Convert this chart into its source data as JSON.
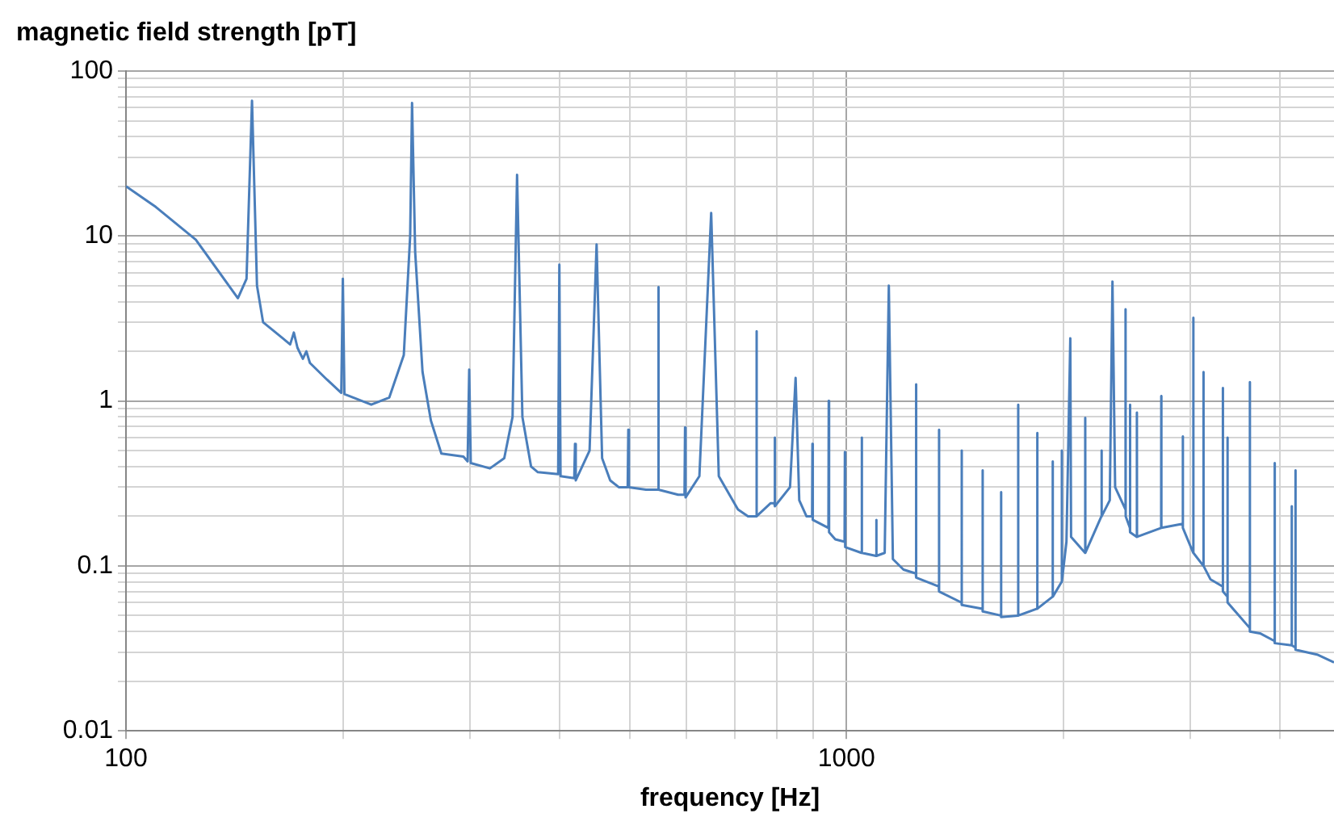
{
  "chart_data": {
    "type": "line",
    "ylabel": "magnetic field strength [pT]",
    "xlabel": "frequency [Hz]",
    "log": "xy",
    "grid": true,
    "marker": "none",
    "line_style": "solid",
    "xlim": [
      100,
      4750
    ],
    "xticks": [
      100,
      {
        "value": 200,
        "label": null
      },
      {
        "value": 300,
        "label": null
      },
      {
        "value": 400,
        "label": null
      },
      {
        "value": 500,
        "label": null
      },
      {
        "value": 600,
        "label": null
      },
      {
        "value": 700,
        "label": null
      },
      {
        "value": 800,
        "label": null
      },
      {
        "value": 900,
        "label": null
      },
      1000,
      {
        "value": 2000,
        "label": null
      },
      {
        "value": 3000,
        "label": null
      },
      {
        "value": 4000,
        "label": null
      }
    ],
    "ylim": [
      0.01,
      100
    ],
    "yticks": [
      0.01,
      {
        "value": 0.02,
        "label": null
      },
      {
        "value": 0.03,
        "label": null
      },
      {
        "value": 0.04,
        "label": null
      },
      {
        "value": 0.05,
        "label": null
      },
      {
        "value": 0.06,
        "label": null
      },
      {
        "value": 0.07,
        "label": null
      },
      {
        "value": 0.08,
        "label": null
      },
      {
        "value": 0.09,
        "label": null
      },
      0.1,
      {
        "value": 0.2,
        "label": null
      },
      {
        "value": 0.3,
        "label": null
      },
      {
        "value": 0.4,
        "label": null
      },
      {
        "value": 0.5,
        "label": null
      },
      {
        "value": 0.6,
        "label": null
      },
      {
        "value": 0.7,
        "label": null
      },
      {
        "value": 0.8,
        "label": null
      },
      {
        "value": 0.9,
        "label": null
      },
      1,
      {
        "value": 2,
        "label": null
      },
      {
        "value": 3,
        "label": null
      },
      {
        "value": 4,
        "label": null
      },
      {
        "value": 5,
        "label": null
      },
      {
        "value": 6,
        "label": null
      },
      {
        "value": 7,
        "label": null
      },
      {
        "value": 8,
        "label": null
      },
      {
        "value": 9,
        "label": null
      },
      10,
      {
        "value": 20,
        "label": null
      },
      {
        "value": 30,
        "label": null
      },
      {
        "value": 40,
        "label": null
      },
      {
        "value": 50,
        "label": null
      },
      {
        "value": 60,
        "label": null
      },
      {
        "value": 70,
        "label": null
      },
      {
        "value": 80,
        "label": null
      },
      {
        "value": 90,
        "label": null
      },
      100
    ],
    "series": [
      {
        "color": "#4a7ebb",
        "x": [
          100,
          110,
          125,
          143,
          147,
          149.6,
          152,
          155,
          165,
          169,
          171,
          173,
          176,
          178,
          180,
          190,
          199,
          200,
          201,
          219,
          232,
          243,
          248,
          249.5,
          252,
          258,
          265,
          274,
          294,
          298,
          299.5,
          301,
          320,
          335,
          344,
          349,
          355,
          365,
          373,
          398,
          399.5,
          401,
          419,
          420,
          421,
          440,
          450,
          458,
          470,
          483,
          497,
          498,
          499,
          527,
          547,
          548,
          549,
          584,
          596,
          597,
          598,
          625,
          649,
          665,
          707,
          730,
          749,
          750,
          751,
          785,
          794,
          795,
          796,
          835,
          850,
          860,
          880,
          896,
          897,
          898,
          944,
          945,
          946,
          965,
          994,
          995,
          996,
          1049,
          1050,
          1051,
          1099,
          1100,
          1101,
          1130,
          1145,
          1160,
          1200,
          1248,
          1249,
          1250,
          1343,
          1344,
          1345,
          1444,
          1445,
          1446,
          1544,
          1545,
          1546,
          1638,
          1639,
          1640,
          1730,
          1731,
          1732,
          1839,
          1840,
          1841,
          1932,
          1933,
          1934,
          1989,
          1990,
          1991,
          2020,
          2045,
          2050,
          2144,
          2145,
          2146,
          2259,
          2260,
          2261,
          2320,
          2340,
          2360,
          2439,
          2440,
          2441,
          2474,
          2475,
          2476,
          2529,
          2530,
          2531,
          2734,
          2735,
          2736,
          2929,
          2930,
          2931,
          3029,
          3030,
          3031,
          3129,
          3130,
          3131,
          3200,
          3329,
          3330,
          3331,
          3379,
          3380,
          3381,
          3629,
          3630,
          3631,
          3750,
          3929,
          3930,
          3931,
          4149,
          4150,
          4151,
          4199,
          4200,
          4201,
          4500,
          4750
        ],
        "values": [
          20,
          15,
          9.5,
          4.2,
          5.5,
          66,
          5,
          3,
          2.4,
          2.2,
          2.6,
          2.1,
          1.8,
          2.0,
          1.7,
          1.35,
          1.12,
          5.5,
          1.1,
          0.95,
          1.05,
          1.9,
          10,
          64,
          8,
          1.5,
          0.76,
          0.48,
          0.46,
          0.43,
          1.55,
          0.42,
          0.39,
          0.45,
          0.8,
          23.5,
          0.8,
          0.4,
          0.37,
          0.36,
          6.7,
          0.35,
          0.34,
          0.55,
          0.33,
          0.5,
          8.9,
          0.45,
          0.33,
          0.3,
          0.3,
          0.67,
          0.3,
          0.29,
          0.29,
          4.9,
          0.29,
          0.27,
          0.27,
          0.69,
          0.26,
          0.35,
          13.8,
          0.35,
          0.22,
          0.2,
          0.2,
          2.65,
          0.2,
          0.24,
          0.24,
          0.6,
          0.23,
          0.3,
          1.38,
          0.25,
          0.2,
          0.2,
          0.55,
          0.19,
          0.17,
          1.0,
          0.16,
          0.145,
          0.14,
          0.49,
          0.13,
          0.12,
          0.6,
          0.12,
          0.115,
          0.19,
          0.115,
          0.12,
          5.0,
          0.11,
          0.095,
          0.09,
          1.26,
          0.085,
          0.075,
          0.67,
          0.07,
          0.06,
          0.5,
          0.058,
          0.055,
          0.38,
          0.053,
          0.05,
          0.28,
          0.049,
          0.05,
          0.95,
          0.05,
          0.055,
          0.64,
          0.055,
          0.065,
          0.43,
          0.065,
          0.08,
          0.5,
          0.08,
          0.14,
          2.4,
          0.15,
          0.12,
          0.79,
          0.12,
          0.2,
          0.5,
          0.2,
          0.25,
          5.3,
          0.3,
          0.22,
          3.6,
          0.2,
          0.17,
          0.95,
          0.16,
          0.15,
          0.85,
          0.15,
          0.17,
          1.07,
          0.17,
          0.18,
          0.61,
          0.17,
          0.12,
          3.2,
          0.12,
          0.1,
          1.5,
          0.1,
          0.083,
          0.075,
          1.2,
          0.07,
          0.065,
          0.6,
          0.06,
          0.042,
          1.3,
          0.04,
          0.039,
          0.035,
          0.42,
          0.034,
          0.033,
          0.23,
          0.033,
          0.032,
          0.38,
          0.031,
          0.029,
          0.026
        ]
      }
    ]
  }
}
